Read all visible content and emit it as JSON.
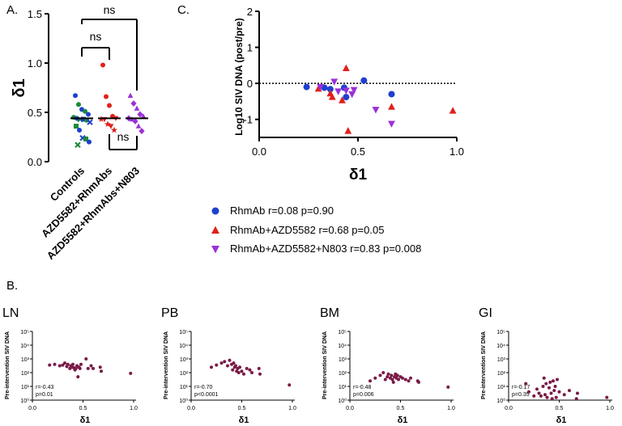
{
  "panel_labels": {
    "a": "A.",
    "b": "B.",
    "c": "C."
  },
  "colors": {
    "blue": "#1f3fd0",
    "green": "#1a8a3a",
    "red": "#e0201c",
    "purple": "#9b30d9",
    "maroon": "#7a1a47"
  },
  "chart_data": [
    {
      "id": "A",
      "type": "scatter",
      "title": "",
      "ylabel": "δ1",
      "ylim": [
        0,
        1.5
      ],
      "yticks": [
        "0.0",
        "0.5",
        "1.0",
        "1.5"
      ],
      "categories": [
        "Controls",
        "AZD5582+RhmAbs",
        "AZD5582+RhmAbs+N803"
      ],
      "series": [
        {
          "name": "Controls",
          "median": 0.44,
          "values": [
            0.67,
            0.58,
            0.53,
            0.51,
            0.48,
            0.45,
            0.44,
            0.43,
            0.43,
            0.42,
            0.4,
            0.36,
            0.32,
            0.24,
            0.23,
            0.2,
            0.17
          ]
        },
        {
          "name": "AZD5582+RhmAbs",
          "median": 0.44,
          "values": [
            0.98,
            0.66,
            0.57,
            0.46,
            0.44,
            0.43,
            0.43,
            0.38,
            0.36,
            0.32
          ]
        },
        {
          "name": "AZD5582+RhmAbs+N803",
          "median": 0.44,
          "values": [
            0.67,
            0.59,
            0.54,
            0.48,
            0.46,
            0.44,
            0.43,
            0.41,
            0.36,
            0.31
          ]
        }
      ],
      "comparisons": [
        {
          "groups": [
            "Controls",
            "AZD5582+RhmAbs+N803"
          ],
          "label": "ns"
        },
        {
          "groups": [
            "Controls",
            "AZD5582+RhmAbs"
          ],
          "label": "ns"
        },
        {
          "groups": [
            "AZD5582+RhmAbs",
            "AZD5582+RhmAbs+N803"
          ],
          "label": "ns"
        }
      ]
    },
    {
      "id": "C",
      "type": "scatter",
      "xlabel": "δ1",
      "ylabel": "Log10 SIV DNA (post/pre)",
      "xlim": [
        0,
        1.0
      ],
      "ylim": [
        -1.5,
        2
      ],
      "xticks": [
        "0.0",
        "0.5",
        "1.0"
      ],
      "yticks": [
        "-1",
        "0",
        "1",
        "2"
      ],
      "reference_line_y": 0,
      "series": [
        {
          "name": "RhmAb",
          "r": "r=0.08",
          "p": "p=0.90",
          "marker": "circle",
          "points": [
            [
              0.24,
              -0.1
            ],
            [
              0.33,
              -0.12
            ],
            [
              0.36,
              -0.16
            ],
            [
              0.43,
              -0.12
            ],
            [
              0.44,
              -0.38
            ],
            [
              0.53,
              0.08
            ],
            [
              0.67,
              -0.3
            ]
          ]
        },
        {
          "name": "RhmAb+AZD5582",
          "r": "r=0.68",
          "p": "p=0.05",
          "marker": "triangle-up",
          "points": [
            [
              0.3,
              -0.15
            ],
            [
              0.36,
              -0.28
            ],
            [
              0.37,
              -0.38
            ],
            [
              0.42,
              -0.47
            ],
            [
              0.44,
              0.42
            ],
            [
              0.45,
              -1.32
            ],
            [
              0.67,
              -0.65
            ],
            [
              0.98,
              -0.76
            ]
          ]
        },
        {
          "name": "RhmAb+AZD5582+N803",
          "r": "r=0.83",
          "p": "p=0.008",
          "marker": "triangle-down",
          "points": [
            [
              0.31,
              -0.1
            ],
            [
              0.38,
              0.05
            ],
            [
              0.4,
              -0.22
            ],
            [
              0.44,
              -0.2
            ],
            [
              0.47,
              -0.3
            ],
            [
              0.48,
              -0.18
            ],
            [
              0.59,
              -0.73
            ],
            [
              0.67,
              -1.12
            ]
          ]
        }
      ]
    },
    {
      "id": "B-LN",
      "type": "scatter",
      "title": "LN",
      "xlabel": "δ1",
      "ylabel": "Pre-intervention SIV DNA",
      "xlim": [
        0,
        1.0
      ],
      "ylim_log10": [
        0,
        5
      ],
      "xticks": [
        "0.0",
        "0.5",
        "1.0"
      ],
      "yticks": [
        "10⁰",
        "10¹",
        "10²",
        "10³",
        "10⁴",
        "10⁵"
      ],
      "stats": [
        "r=-0.43",
        "p=0.01"
      ],
      "points": [
        [
          0.17,
          2.55
        ],
        [
          0.22,
          2.6
        ],
        [
          0.27,
          2.5
        ],
        [
          0.3,
          2.55
        ],
        [
          0.32,
          2.7
        ],
        [
          0.34,
          2.45
        ],
        [
          0.35,
          2.6
        ],
        [
          0.37,
          2.3
        ],
        [
          0.38,
          2.5
        ],
        [
          0.39,
          2.4
        ],
        [
          0.4,
          2.6
        ],
        [
          0.41,
          2.35
        ],
        [
          0.42,
          2.2
        ],
        [
          0.43,
          2.3
        ],
        [
          0.44,
          2.5
        ],
        [
          0.45,
          1.7
        ],
        [
          0.46,
          2.4
        ],
        [
          0.47,
          2.3
        ],
        [
          0.48,
          2.6
        ],
        [
          0.53,
          3.0
        ],
        [
          0.55,
          2.3
        ],
        [
          0.58,
          2.5
        ],
        [
          0.6,
          2.3
        ],
        [
          0.67,
          2.4
        ],
        [
          0.68,
          2.1
        ],
        [
          0.97,
          1.95
        ]
      ]
    },
    {
      "id": "B-PB",
      "type": "scatter",
      "title": "PB",
      "xlabel": "δ1",
      "ylabel": "Pre-intervention SIV DNA",
      "xlim": [
        0,
        1.0
      ],
      "ylim_log10": [
        0,
        5
      ],
      "xticks": [
        "0.0",
        "0.5",
        "1.0"
      ],
      "yticks": [
        "10⁰",
        "10¹",
        "10²",
        "10³",
        "10⁴",
        "10⁵"
      ],
      "stats": [
        "r=-0.70",
        "p<0.0001"
      ],
      "points": [
        [
          0.2,
          2.4
        ],
        [
          0.25,
          2.55
        ],
        [
          0.3,
          2.7
        ],
        [
          0.33,
          2.8
        ],
        [
          0.36,
          2.5
        ],
        [
          0.38,
          2.9
        ],
        [
          0.4,
          2.6
        ],
        [
          0.41,
          2.2
        ],
        [
          0.42,
          2.7
        ],
        [
          0.43,
          2.4
        ],
        [
          0.44,
          2.5
        ],
        [
          0.45,
          2.1
        ],
        [
          0.46,
          2.3
        ],
        [
          0.47,
          2.0
        ],
        [
          0.48,
          2.4
        ],
        [
          0.5,
          2.1
        ],
        [
          0.52,
          1.9
        ],
        [
          0.55,
          2.3
        ],
        [
          0.58,
          2.2
        ],
        [
          0.6,
          2.0
        ],
        [
          0.67,
          2.3
        ],
        [
          0.68,
          1.9
        ],
        [
          0.97,
          1.1
        ]
      ]
    },
    {
      "id": "B-BM",
      "type": "scatter",
      "title": "BM",
      "xlabel": "δ1",
      "ylabel": "Pre-intervention SIV DNA",
      "xlim": [
        0,
        1.0
      ],
      "ylim_log10": [
        0,
        5
      ],
      "xticks": [
        "0.0",
        "0.5",
        "1.0"
      ],
      "yticks": [
        "10⁰",
        "10¹",
        "10²",
        "10³",
        "10⁴",
        "10⁵"
      ],
      "stats": [
        "r=-0.48",
        "p=0.006"
      ],
      "points": [
        [
          0.2,
          1.4
        ],
        [
          0.25,
          1.6
        ],
        [
          0.3,
          1.8
        ],
        [
          0.33,
          2.0
        ],
        [
          0.35,
          1.5
        ],
        [
          0.37,
          1.7
        ],
        [
          0.38,
          1.9
        ],
        [
          0.4,
          1.6
        ],
        [
          0.41,
          1.8
        ],
        [
          0.42,
          1.5
        ],
        [
          0.43,
          1.3
        ],
        [
          0.44,
          1.7
        ],
        [
          0.45,
          1.9
        ],
        [
          0.46,
          1.6
        ],
        [
          0.47,
          1.8
        ],
        [
          0.48,
          1.5
        ],
        [
          0.5,
          1.7
        ],
        [
          0.52,
          1.6
        ],
        [
          0.55,
          1.5
        ],
        [
          0.58,
          1.4
        ],
        [
          0.6,
          1.6
        ],
        [
          0.67,
          1.4
        ],
        [
          0.68,
          1.3
        ],
        [
          0.97,
          0.95
        ]
      ]
    },
    {
      "id": "B-GI",
      "type": "scatter",
      "title": "GI",
      "xlabel": "δ1",
      "ylabel": "Pre-intervention SIV DNA",
      "xlim": [
        0,
        1.0
      ],
      "ylim_log10": [
        0,
        5
      ],
      "xticks": [
        "0.0",
        "0.5",
        "1.0"
      ],
      "yticks": [
        "10⁰",
        "10¹",
        "10²",
        "10³",
        "10⁴",
        "10⁵"
      ],
      "stats": [
        "r=-0.17",
        "p=0.35"
      ],
      "points": [
        [
          0.17,
          1.2
        ],
        [
          0.2,
          0.6
        ],
        [
          0.25,
          0.3
        ],
        [
          0.28,
          0.8
        ],
        [
          0.3,
          0.5
        ],
        [
          0.32,
          0.3
        ],
        [
          0.34,
          1.0
        ],
        [
          0.35,
          1.6
        ],
        [
          0.36,
          0.4
        ],
        [
          0.37,
          1.2
        ],
        [
          0.38,
          0.2
        ],
        [
          0.4,
          0.9
        ],
        [
          0.41,
          1.3
        ],
        [
          0.42,
          0.5
        ],
        [
          0.43,
          0.1
        ],
        [
          0.44,
          1.4
        ],
        [
          0.45,
          0.7
        ],
        [
          0.46,
          1.0
        ],
        [
          0.47,
          0.2
        ],
        [
          0.48,
          1.5
        ],
        [
          0.5,
          0.6
        ],
        [
          0.55,
          0.4
        ],
        [
          0.6,
          0.7
        ],
        [
          0.67,
          0.1
        ],
        [
          0.68,
          0.5
        ],
        [
          0.97,
          0.2
        ]
      ]
    }
  ]
}
